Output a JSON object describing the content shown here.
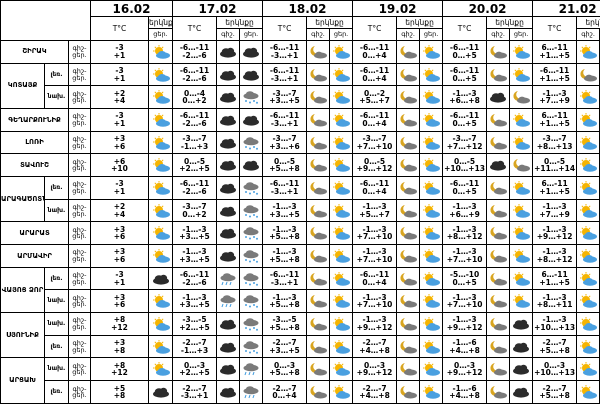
{
  "header": {
    "dates": [
      "16.02",
      "17.02",
      "18.02",
      "19.02",
      "20.02",
      "21.02"
    ],
    "temp_label": "T°C",
    "sky_label": "երկնքը",
    "day_label": "ցեր.",
    "night_label": "գիշ.",
    "period_label": "գիշ-ցեր."
  },
  "rows": [
    {
      "region": "ՇԻՐԱԿ",
      "sub": "",
      "temps": [
        [
          "-3",
          "+1"
        ],
        [
          "-6…-11",
          "-2…-6"
        ],
        [
          "-6…-11",
          "-3…+1"
        ],
        [
          "-6…-11",
          "0…+4"
        ],
        [
          "-6…-11",
          "0…+5"
        ],
        [
          "6…-11",
          "+1…+5"
        ]
      ]
    },
    {
      "region": "ԿՈՏԱՅՔ",
      "sub": "լեռ.",
      "temps": [
        [
          "-3",
          "+1"
        ],
        [
          "-6…-11",
          "-2…-6"
        ],
        [
          "-6…-11",
          "-3…+1"
        ],
        [
          "-6…-11",
          "0…+4"
        ],
        [
          "-6…-11",
          "0…+5"
        ],
        [
          "-6…-11",
          "+1…+5"
        ]
      ]
    },
    {
      "region": "",
      "sub": "նախ.",
      "temps": [
        [
          "+2",
          "+4"
        ],
        [
          "0…-4",
          "0…+2"
        ],
        [
          "-3…-7",
          "+3…+5"
        ],
        [
          "0…-2",
          "+5…+7"
        ],
        [
          "-1…-3",
          "+6…+8"
        ],
        [
          "-1…-3",
          "+7…+9"
        ]
      ]
    },
    {
      "region": "ԳԵՂԱՐՔՈՒՆԻՔ",
      "sub": "",
      "temps": [
        [
          "-3",
          "+1"
        ],
        [
          "-6…-11",
          "-2…-6"
        ],
        [
          "-6…-11",
          "-3…+1"
        ],
        [
          "-6…-11",
          "0…+4"
        ],
        [
          "-6…-11",
          "0…+5"
        ],
        [
          "6…-11",
          "+1…+5"
        ]
      ]
    },
    {
      "region": "ԼՈՌԻ",
      "sub": "",
      "temps": [
        [
          "+3",
          "+6"
        ],
        [
          "-3…-7",
          "-1…+3"
        ],
        [
          "-3…-7",
          "+3…+6"
        ],
        [
          "-3…-7",
          "+7…+10"
        ],
        [
          "-3…-7",
          "+7…+12"
        ],
        [
          "-3…-7",
          "+8…+13"
        ]
      ]
    },
    {
      "region": "ՏԱՎՈՒՇ",
      "sub": "",
      "temps": [
        [
          "+6",
          "+10"
        ],
        [
          "0…-5",
          "+2…+5"
        ],
        [
          "0…-5",
          "+5…+8"
        ],
        [
          "0…-5",
          "+9…+12"
        ],
        [
          "0…-5",
          "+10…+13"
        ],
        [
          "0…-5",
          "+11…+14"
        ]
      ]
    },
    {
      "region": "ԱՐԱԳԱԾՈՏՆ",
      "sub": "լեռ.",
      "temps": [
        [
          "-3",
          "+1"
        ],
        [
          "-6…-11",
          "-2…-6"
        ],
        [
          "-6…-11",
          "-3…+1"
        ],
        [
          "-6…-11",
          "0…+4"
        ],
        [
          "-6…-11",
          "0…+5"
        ],
        [
          "6…-11",
          "+1…+5"
        ]
      ]
    },
    {
      "region": "",
      "sub": "նախ.",
      "temps": [
        [
          "+2",
          "+4"
        ],
        [
          "-3…-7",
          "0…+2"
        ],
        [
          "-1…-3",
          "+3…+5"
        ],
        [
          "-1…-3",
          "+5…+7"
        ],
        [
          "-1…-3",
          "+6…+9"
        ],
        [
          "-1…-3",
          "+7…+9"
        ]
      ]
    },
    {
      "region": "ԱՐԱՐԱՏ",
      "sub": "",
      "temps": [
        [
          "+3",
          "+6"
        ],
        [
          "-1…-3",
          "+3…+5"
        ],
        [
          "-1…-3",
          "+5…+8"
        ],
        [
          "-1…-3",
          "+7…+10"
        ],
        [
          "-1…-3",
          "+8…+12"
        ],
        [
          "-1…-3",
          "+9…+12"
        ]
      ]
    },
    {
      "region": "ԱՐՄԱՎԻՐ",
      "sub": "",
      "temps": [
        [
          "+3",
          "+6"
        ],
        [
          "-1…-3",
          "+3…+5"
        ],
        [
          "-1…-3",
          "+5…+8"
        ],
        [
          "-1…-3",
          "+7…+10"
        ],
        [
          "-1…-3",
          "+7…+10"
        ],
        [
          "-1…-3",
          "+8…+12"
        ]
      ]
    },
    {
      "region": "ՎԱՅՈՑ ՁՈՐ",
      "sub": "լեռ.",
      "temps": [
        [
          "-3",
          "+1"
        ],
        [
          "-6…-11",
          "-2…-6"
        ],
        [
          "-6…-11",
          "-3…+1"
        ],
        [
          "-6…-11",
          "0…+4"
        ],
        [
          "-5…-10",
          "0…+5"
        ],
        [
          "6…-11",
          "+1…+5"
        ]
      ]
    },
    {
      "region": "",
      "sub": "նախ.",
      "temps": [
        [
          "+3",
          "+6"
        ],
        [
          "-1…-3",
          "+3…+5"
        ],
        [
          "-1…-3",
          "+5…+8"
        ],
        [
          "-1…-3",
          "+7…+10"
        ],
        [
          "-1…-3",
          "+7…+10"
        ],
        [
          "-1…-3",
          "+8…+11"
        ]
      ]
    },
    {
      "region": "ՍՅՈՒՆԻՔ",
      "sub": "նախ.",
      "temps": [
        [
          "+8",
          "+12"
        ],
        [
          "-3…-5",
          "+2…+5"
        ],
        [
          "-3…-5",
          "+5…+8"
        ],
        [
          "-1…-3",
          "+9…+12"
        ],
        [
          "-1…-3",
          "+9…+12"
        ],
        [
          "-1…-3",
          "+10…+13"
        ]
      ]
    },
    {
      "region": "",
      "sub": "լեռ.",
      "temps": [
        [
          "+3",
          "+8"
        ],
        [
          "-2…-7",
          "-1…+3"
        ],
        [
          "-2…-7",
          "+3…+5"
        ],
        [
          "-2…-7",
          "+4…+8"
        ],
        [
          "-1…-6",
          "+4…+8"
        ],
        [
          "-2…-7",
          "+5…+8"
        ]
      ]
    },
    {
      "region": "ԱՐՑԱԽ",
      "sub": "նախ.",
      "temps": [
        [
          "+8",
          "+12"
        ],
        [
          "0…-3",
          "+2…+5"
        ],
        [
          "0…-3",
          "+5…+8"
        ],
        [
          "0…-3",
          "+9…+12"
        ],
        [
          "0…-3",
          "+9…+12"
        ],
        [
          "0…-3",
          "+10…+13"
        ]
      ]
    },
    {
      "region": "",
      "sub": "լեռ.",
      "temps": [
        [
          "+5",
          "+8"
        ],
        [
          "-2…-7",
          "-3…+1"
        ],
        [
          "-2…-7",
          "0…+4"
        ],
        [
          "-2…-7",
          "+4…+8"
        ],
        [
          "-1…-6",
          "+4…+8"
        ],
        [
          "-2…-7",
          "+5…+8"
        ]
      ]
    }
  ],
  "icons": {
    "sun": "sun-behind-cloud-icon",
    "moon": "moon-behind-cloud-icon",
    "cloud": "dark-cloud-icon",
    "snow": "snow-cloud-icon",
    "rain": "rain-cloud-icon"
  },
  "icon_grid": [
    [
      [
        "sun"
      ],
      [
        "cloud",
        "cloud"
      ],
      [
        "moon",
        "sun"
      ],
      [
        "moon",
        "sun"
      ],
      [
        "moon",
        "sun"
      ],
      [
        "sun",
        "moon"
      ]
    ],
    [
      [
        "sun"
      ],
      [
        "cloud",
        "cloud"
      ],
      [
        "moon",
        "sun"
      ],
      [
        "moon",
        "sun"
      ],
      [
        "moon",
        "sun"
      ],
      [
        "moon",
        "sun"
      ]
    ],
    [
      [
        "sun"
      ],
      [
        "cloud",
        "snow"
      ],
      [
        "moon",
        "sun"
      ],
      [
        "moon",
        "sun"
      ],
      [
        "cloud",
        "moon"
      ],
      [
        "sun",
        "cloud"
      ]
    ],
    [
      [
        "sun"
      ],
      [
        "cloud",
        "cloud"
      ],
      [
        "moon",
        "sun"
      ],
      [
        "moon",
        "sun"
      ],
      [
        "moon",
        "sun"
      ],
      [
        "sun",
        "moon"
      ]
    ],
    [
      [
        "sun"
      ],
      [
        "cloud",
        "snow"
      ],
      [
        "moon",
        "sun"
      ],
      [
        "moon",
        "sun"
      ],
      [
        "moon",
        "sun"
      ],
      [
        "sun",
        "moon"
      ]
    ],
    [
      [
        "sun"
      ],
      [
        "cloud",
        "cloud"
      ],
      [
        "moon",
        "sun"
      ],
      [
        "moon",
        "sun"
      ],
      [
        "cloud",
        "moon"
      ],
      [
        "sun",
        "moon"
      ]
    ],
    [
      [
        "sun"
      ],
      [
        "cloud",
        "snow"
      ],
      [
        "moon",
        "sun"
      ],
      [
        "moon",
        "sun"
      ],
      [
        "moon",
        "sun"
      ],
      [
        "sun",
        "moon"
      ]
    ],
    [
      [
        "sun"
      ],
      [
        "cloud",
        "snow"
      ],
      [
        "moon",
        "sun"
      ],
      [
        "moon",
        "sun"
      ],
      [
        "moon",
        "sun"
      ],
      [
        "sun",
        "moon"
      ]
    ],
    [
      [
        "sun"
      ],
      [
        "cloud",
        "snow"
      ],
      [
        "moon",
        "sun"
      ],
      [
        "moon",
        "sun"
      ],
      [
        "moon",
        "sun"
      ],
      [
        "sun",
        "moon"
      ]
    ],
    [
      [
        "sun"
      ],
      [
        "cloud",
        "snow"
      ],
      [
        "moon",
        "sun"
      ],
      [
        "moon",
        "sun"
      ],
      [
        "moon",
        "sun"
      ],
      [
        "sun",
        "moon"
      ]
    ],
    [
      [
        "cloud"
      ],
      [
        "rain",
        "snow"
      ],
      [
        "moon",
        "sun"
      ],
      [
        "moon",
        "sun"
      ],
      [
        "moon",
        "sun"
      ],
      [
        "sun",
        "moon"
      ]
    ],
    [
      [
        "sun"
      ],
      [
        "rain",
        "snow"
      ],
      [
        "moon",
        "sun"
      ],
      [
        "moon",
        "sun"
      ],
      [
        "moon",
        "sun"
      ],
      [
        "sun",
        "moon"
      ]
    ],
    [
      [
        "sun"
      ],
      [
        "cloud",
        "snow"
      ],
      [
        "moon",
        "sun"
      ],
      [
        "moon",
        "sun"
      ],
      [
        "moon",
        "cloud"
      ],
      [
        "sun",
        "moon"
      ]
    ],
    [
      [
        "sun"
      ],
      [
        "cloud",
        "snow"
      ],
      [
        "moon",
        "sun"
      ],
      [
        "moon",
        "sun"
      ],
      [
        "moon",
        "cloud"
      ],
      [
        "sun",
        "moon"
      ]
    ],
    [
      [
        "sun"
      ],
      [
        "cloud",
        "rain"
      ],
      [
        "moon",
        "sun"
      ],
      [
        "moon",
        "sun"
      ],
      [
        "moon",
        "cloud"
      ],
      [
        "sun",
        "moon"
      ]
    ],
    [
      [
        "cloud"
      ],
      [
        "cloud",
        "rain"
      ],
      [
        "moon",
        "sun"
      ],
      [
        "moon",
        "sun"
      ],
      [
        "moon",
        "cloud"
      ],
      [
        "sun",
        "moon"
      ]
    ]
  ]
}
